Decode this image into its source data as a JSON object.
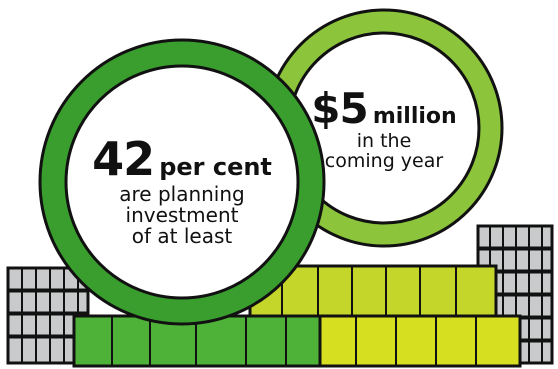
{
  "colors": {
    "dark_green": "#3a9e2f",
    "mid_green": "#5bbd3a",
    "light_green": "#8cc43c",
    "lime": "#c5d62a",
    "yellow_green": "#d7e020",
    "grey": "#c9cacb",
    "outline": "#111111"
  },
  "left_circle": {
    "figure": "42",
    "unit": "per cent",
    "line1": "are planning",
    "line2": "investment",
    "line3": "of at least"
  },
  "right_circle": {
    "figure": "$5",
    "unit": "million",
    "line1": "in the",
    "line2": "coming year"
  }
}
